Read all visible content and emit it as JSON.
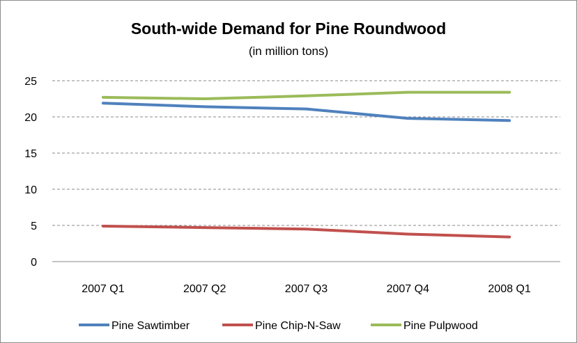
{
  "chart_data": {
    "type": "line",
    "title": "South-wide Demand for Pine Roundwood",
    "subtitle": "(in million tons)",
    "categories": [
      "2007 Q1",
      "2007 Q2",
      "2007 Q3",
      "2007 Q4",
      "2008 Q1"
    ],
    "ylim": [
      0,
      25
    ],
    "yticks": [
      0,
      5,
      10,
      15,
      20,
      25
    ],
    "grid": true,
    "legend_position": "bottom",
    "series": [
      {
        "name": "Pine Sawtimber",
        "color": "#4f81bd",
        "values": [
          21.9,
          21.4,
          21.1,
          19.8,
          19.5
        ]
      },
      {
        "name": "Pine Chip-N-Saw",
        "color": "#c0504d",
        "values": [
          4.9,
          4.7,
          4.5,
          3.8,
          3.4
        ]
      },
      {
        "name": "Pine Pulpwood",
        "color": "#9bbb59",
        "values": [
          22.7,
          22.5,
          22.9,
          23.4,
          23.4
        ]
      }
    ]
  }
}
